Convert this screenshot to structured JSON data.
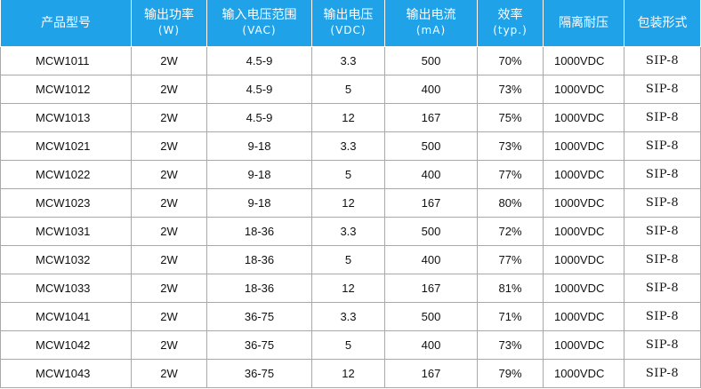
{
  "header": [
    {
      "main": "产品型号",
      "sub": ""
    },
    {
      "main": "输出功率",
      "sub": "(W)"
    },
    {
      "main": "输入电压范围",
      "sub": "(VAC)"
    },
    {
      "main": "输出电压",
      "sub": "(VDC)"
    },
    {
      "main": "输出电流",
      "sub": "(mA)"
    },
    {
      "main": "效率",
      "sub": "(typ.)"
    },
    {
      "main": "隔离耐压",
      "sub": ""
    },
    {
      "main": "包装形式",
      "sub": ""
    }
  ],
  "rows": [
    [
      "MCW1011",
      "2W",
      "4.5-9",
      "3.3",
      "500",
      "70%",
      "1000VDC",
      "SIP-8"
    ],
    [
      "MCW1012",
      "2W",
      "4.5-9",
      "5",
      "400",
      "73%",
      "1000VDC",
      "SIP-8"
    ],
    [
      "MCW1013",
      "2W",
      "4.5-9",
      "12",
      "167",
      "75%",
      "1000VDC",
      "SIP-8"
    ],
    [
      "MCW1021",
      "2W",
      "9-18",
      "3.3",
      "500",
      "73%",
      "1000VDC",
      "SIP-8"
    ],
    [
      "MCW1022",
      "2W",
      "9-18",
      "5",
      "400",
      "77%",
      "1000VDC",
      "SIP-8"
    ],
    [
      "MCW1023",
      "2W",
      "9-18",
      "12",
      "167",
      "80%",
      "1000VDC",
      "SIP-8"
    ],
    [
      "MCW1031",
      "2W",
      "18-36",
      "3.3",
      "500",
      "72%",
      "1000VDC",
      "SIP-8"
    ],
    [
      "MCW1032",
      "2W",
      "18-36",
      "5",
      "400",
      "77%",
      "1000VDC",
      "SIP-8"
    ],
    [
      "MCW1033",
      "2W",
      "18-36",
      "12",
      "167",
      "81%",
      "1000VDC",
      "SIP-8"
    ],
    [
      "MCW1041",
      "2W",
      "36-75",
      "3.3",
      "500",
      "71%",
      "1000VDC",
      "SIP-8"
    ],
    [
      "MCW1042",
      "2W",
      "36-75",
      "5",
      "400",
      "73%",
      "1000VDC",
      "SIP-8"
    ],
    [
      "MCW1043",
      "2W",
      "36-75",
      "12",
      "167",
      "79%",
      "1000VDC",
      "SIP-8"
    ]
  ],
  "colors": {
    "header_bg": "#1fa2e8",
    "header_text": "#ffffff",
    "grid_line": "#a9a9a9"
  }
}
